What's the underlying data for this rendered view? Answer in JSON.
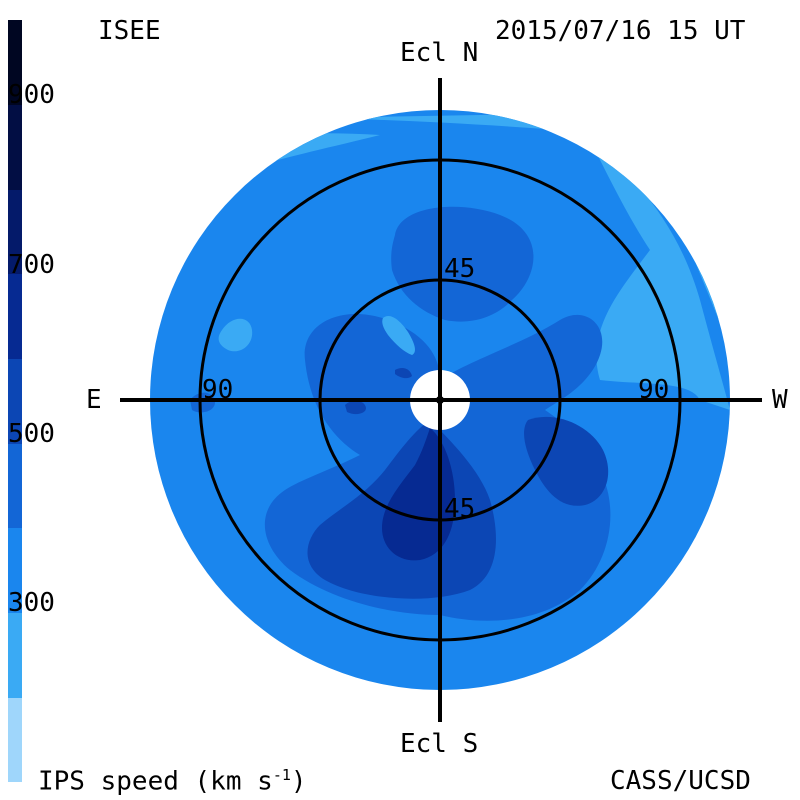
{
  "header": {
    "org": "ISEE",
    "datetime": "2015/07/16 15 UT"
  },
  "footer": {
    "colorbar_title": "IPS speed (km s",
    "colorbar_title_sup": "-1",
    "colorbar_title_end": ")",
    "credit": "CASS/UCSD"
  },
  "axes": {
    "north": "Ecl N",
    "south": "Ecl S",
    "east": "E",
    "west": "W",
    "ring_inner_top": "45",
    "ring_inner_bottom": "45",
    "ring_outer_left": "90",
    "ring_outer_right": "90"
  },
  "colorbar": {
    "ticks": [
      "900",
      "700",
      "500",
      "300"
    ],
    "bins": [
      {
        "min": 100,
        "max": 200,
        "color": "#9fd6fb"
      },
      {
        "min": 200,
        "max": 300,
        "color": "#3aaaf4"
      },
      {
        "min": 300,
        "max": 400,
        "color": "#1a86ee"
      },
      {
        "min": 400,
        "max": 500,
        "color": "#1366d6"
      },
      {
        "min": 500,
        "max": 600,
        "color": "#0c46b4"
      },
      {
        "min": 600,
        "max": 700,
        "color": "#062a92"
      },
      {
        "min": 700,
        "max": 800,
        "color": "#041a6a"
      },
      {
        "min": 800,
        "max": 900,
        "color": "#020e44"
      },
      {
        "min": 900,
        "max": 1000,
        "color": "#000622"
      }
    ]
  },
  "colors": {
    "background_speed": "#1a86ee",
    "slow_wind": "#3aaaf4",
    "mid_speed": "#1366d6",
    "fast_speed": "#0c46b4",
    "fastest_speed": "#062a92",
    "grid": "#000000"
  }
}
